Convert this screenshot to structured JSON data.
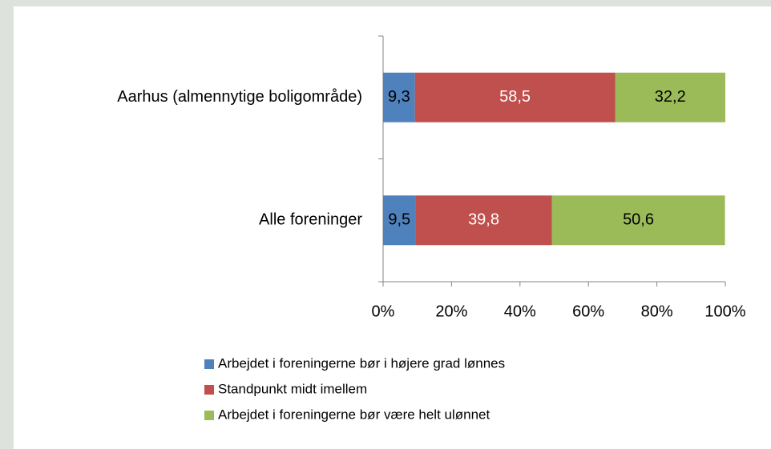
{
  "chart_data": {
    "type": "bar",
    "orientation": "horizontal",
    "stacked": true,
    "categories": [
      "Aarhus (almennytige boligområde)",
      "Alle foreninger"
    ],
    "series": [
      {
        "name": "Arbejdet i foreningerne bør i højere grad lønnes",
        "color": "#4f81bd",
        "label_color": "#000000",
        "values": [
          9.3,
          9.5
        ],
        "value_labels": [
          "9,3",
          "9,5"
        ]
      },
      {
        "name": "Standpunkt midt imellem",
        "color": "#c0504d",
        "label_color": "#ffffff",
        "values": [
          58.5,
          39.8
        ],
        "value_labels": [
          "58,5",
          "39,8"
        ]
      },
      {
        "name": "Arbejdet i foreningerne bør være helt ulønnet",
        "color": "#9bbb59",
        "label_color": "#000000",
        "values": [
          32.2,
          50.6
        ],
        "value_labels": [
          "32,2",
          "50,6"
        ]
      }
    ],
    "xlim": [
      0,
      100
    ],
    "xticks": [
      {
        "value": 0,
        "label": "0%"
      },
      {
        "value": 20,
        "label": "20%"
      },
      {
        "value": 40,
        "label": "40%"
      },
      {
        "value": 60,
        "label": "60%"
      },
      {
        "value": 80,
        "label": "80%"
      },
      {
        "value": 100,
        "label": "100%"
      }
    ],
    "legend": "bottom"
  }
}
